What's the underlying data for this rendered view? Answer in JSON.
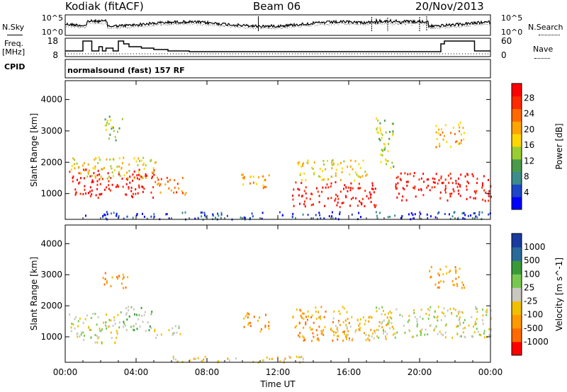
{
  "header": {
    "station": "Kodiak (fitACF)",
    "beam": "Beam 06",
    "date": "20/Nov/2013"
  },
  "left_labels": {
    "nsky": "N.Sky",
    "freq": "Freq.",
    "freq_unit": "[MHz]",
    "cpid": "CPID"
  },
  "right_labels": {
    "nsearch": "N.Search",
    "nave": "Nave"
  },
  "cpid_text": "normalsound (fast) 157 RF",
  "colors": {
    "power": [
      "#0000ff",
      "#1e46c8",
      "#3c8c8c",
      "#4a9a4a",
      "#9acd32",
      "#ffd700",
      "#ffa500",
      "#ff6a00",
      "#ff2a00",
      "#ff0000"
    ],
    "velocity": [
      "#ff0000",
      "#ff6a00",
      "#ff9900",
      "#f0c000",
      "#c8c8c0",
      "#78c850",
      "#3a9a3a",
      "#2a6a9a",
      "#1a3aa0"
    ]
  },
  "chart_data": [
    {
      "type": "line",
      "title": "N.Sky / N.Search",
      "ylabel": "N.Sky",
      "y2label": "N.Search",
      "ylim_labels": [
        "10^0",
        "10^5"
      ],
      "y2lim_labels": [
        "10^0",
        "10^5"
      ],
      "log_scale": true,
      "xlim": [
        "00:00",
        "00:00"
      ]
    },
    {
      "type": "line",
      "ylabel": "Freq. [MHz]",
      "y2label": "Nave",
      "yticks": [
        8,
        18
      ],
      "y2ticks": [
        0,
        60
      ],
      "series": [
        {
          "name": "Freq.",
          "x_hours": [
            0,
            1.0,
            1.0,
            1.5,
            1.5,
            1.9,
            1.9,
            2.1,
            2.1,
            2.3,
            2.3,
            2.7,
            2.7,
            3.0,
            3.0,
            3.3,
            3.3,
            3.6,
            3.6,
            4.3,
            4.3,
            5.0,
            5.0,
            5.8,
            5.8,
            7.0,
            7.0,
            21.2,
            21.2,
            21.4,
            21.4,
            23.1,
            23.1,
            24
          ],
          "values": [
            11,
            11,
            18,
            18,
            11,
            11,
            14,
            14,
            11,
            11,
            13,
            13,
            11,
            11,
            18,
            18,
            16,
            16,
            14,
            14,
            13,
            13,
            12,
            12,
            11,
            11,
            10.5,
            10.5,
            16,
            16,
            18,
            18,
            11,
            11
          ]
        },
        {
          "name": "Nave",
          "values_level": 9
        }
      ]
    },
    {
      "type": "heatmap",
      "ylabel": "Slant Range [km]",
      "yticks": [
        1000,
        2000,
        3000,
        4000
      ],
      "ylim": [
        180,
        4600
      ],
      "colorbar_label": "Power [dB]",
      "colorbar_ticks": [
        4,
        8,
        12,
        16,
        20,
        24,
        28
      ],
      "blobs": [
        {
          "t0": 0.2,
          "t1": 5.0,
          "r0": 900,
          "r1": 1800,
          "level": 9
        },
        {
          "t0": 0.3,
          "t1": 5.2,
          "r0": 1500,
          "r1": 2200,
          "level": 5
        },
        {
          "t0": 2.2,
          "t1": 3.2,
          "r0": 2700,
          "r1": 3500,
          "level": 4
        },
        {
          "t0": 5.0,
          "t1": 6.8,
          "r0": 1000,
          "r1": 1600,
          "level": 7
        },
        {
          "t0": 9.8,
          "t1": 11.5,
          "r0": 1200,
          "r1": 1700,
          "level": 6
        },
        {
          "t0": 12.8,
          "t1": 17.5,
          "r0": 600,
          "r1": 1400,
          "level": 9
        },
        {
          "t0": 13.0,
          "t1": 17.0,
          "r0": 1400,
          "r1": 2100,
          "level": 5
        },
        {
          "t0": 17.5,
          "t1": 18.5,
          "r0": 1800,
          "r1": 3500,
          "level": 4
        },
        {
          "t0": 18.6,
          "t1": 24.0,
          "r0": 800,
          "r1": 1700,
          "level": 9
        },
        {
          "t0": 20.8,
          "t1": 22.5,
          "r0": 2500,
          "r1": 3300,
          "level": 6
        },
        {
          "t0": 1.0,
          "t1": 24.0,
          "r0": 200,
          "r1": 450,
          "level": 1
        }
      ]
    },
    {
      "type": "heatmap",
      "ylabel": "Slant Range [km]",
      "yticks": [
        1000,
        2000,
        3000,
        4000
      ],
      "ylim": [
        180,
        4600
      ],
      "colorbar_label": "Velocity [m s^-1]",
      "colorbar_ticks": [
        1000,
        500,
        100,
        25,
        -25,
        -100,
        -500,
        -1000
      ],
      "blobs": [
        {
          "t0": 0.2,
          "t1": 3.0,
          "r0": 800,
          "r1": 1800,
          "level": 4
        },
        {
          "t0": 3.0,
          "t1": 5.0,
          "r0": 1200,
          "r1": 2000,
          "level": 5
        },
        {
          "t0": 2.0,
          "t1": 3.5,
          "r0": 2600,
          "r1": 3100,
          "level": 2
        },
        {
          "t0": 5.0,
          "t1": 6.5,
          "r0": 1000,
          "r1": 1400,
          "level": 4
        },
        {
          "t0": 10.0,
          "t1": 11.5,
          "r0": 1200,
          "r1": 1800,
          "level": 2
        },
        {
          "t0": 12.8,
          "t1": 16.0,
          "r0": 900,
          "r1": 2000,
          "level": 2
        },
        {
          "t0": 15.0,
          "t1": 18.5,
          "r0": 900,
          "r1": 1700,
          "level": 3
        },
        {
          "t0": 17.5,
          "t1": 24.0,
          "r0": 1000,
          "r1": 2000,
          "level": 4
        },
        {
          "t0": 20.5,
          "t1": 22.5,
          "r0": 2600,
          "r1": 3300,
          "level": 2
        },
        {
          "t0": 6.0,
          "t1": 14.0,
          "r0": 200,
          "r1": 400,
          "level": 3
        }
      ]
    }
  ],
  "x_axis": {
    "ticks": [
      "00:00",
      "04:00",
      "08:00",
      "12:00",
      "16:00",
      "20:00",
      "00:00"
    ],
    "label": "Time UT"
  }
}
